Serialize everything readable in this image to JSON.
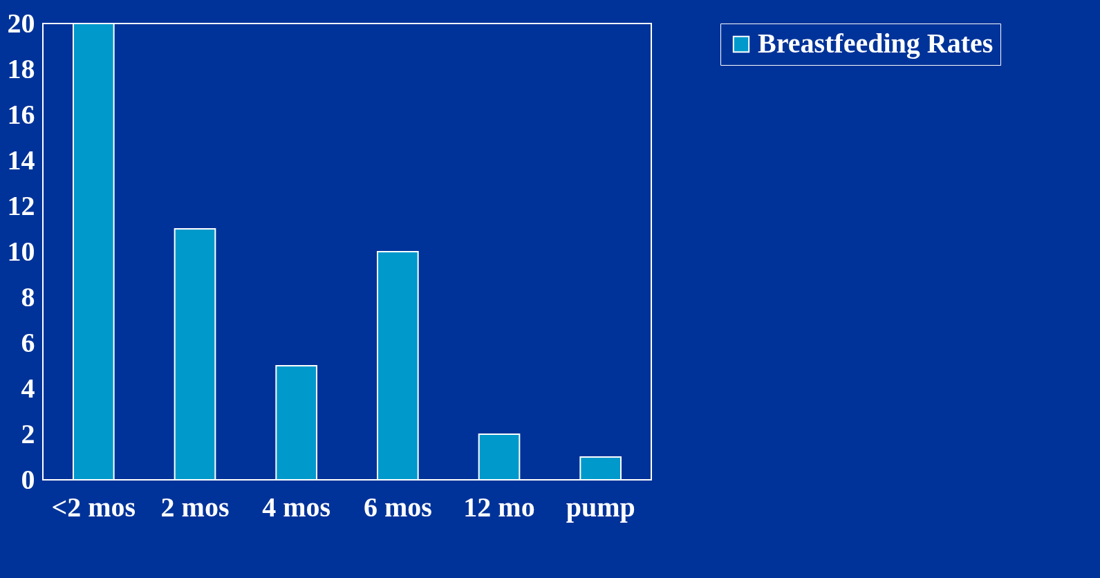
{
  "chart_data": {
    "type": "bar",
    "categories": [
      "<2 mos",
      "2 mos",
      "4 mos",
      "6 mos",
      "12 mo",
      "pump"
    ],
    "series": [
      {
        "name": "Breastfeeding Rates",
        "color": "#0099cc",
        "values": [
          20,
          11,
          5,
          10,
          2,
          1
        ]
      }
    ],
    "ylim": [
      0,
      20
    ],
    "yticks": [
      0,
      2,
      4,
      6,
      8,
      10,
      12,
      14,
      16,
      18,
      20
    ],
    "grid": false,
    "legend": "right"
  }
}
